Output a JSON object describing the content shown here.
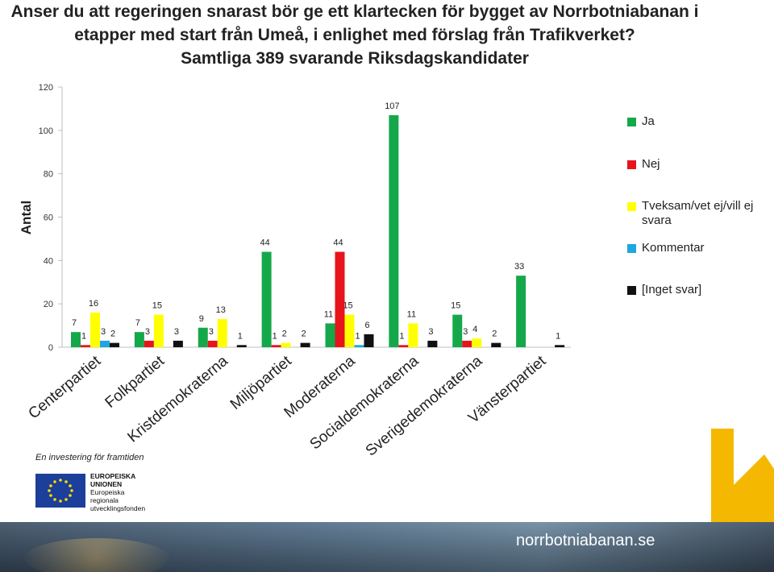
{
  "title_lines": [
    "Anser du att regeringen snarast bör ge ett klartecken för bygget av Norrbotniabanan i",
    "etapper med start från Umeå, i enlighet med förslag från Trafikverket?",
    "Samtliga 389 svarande Riksdagskandidater"
  ],
  "chart_data": {
    "type": "bar",
    "title": "Anser du att regeringen snarast bör ge ett klartecken för bygget av Norrbotniabanan i etapper med start från Umeå, i enlighet med förslag från Trafikverket? Samtliga 389 svarande Riksdagskandidater",
    "ylabel": "Antal",
    "xlabel": "",
    "ylim": [
      0,
      120
    ],
    "yticks": [
      0,
      20,
      40,
      60,
      80,
      100,
      120
    ],
    "grid": false,
    "legend_position": "right",
    "categories": [
      "Centerpartiet",
      "Folkpartiet",
      "Kristdemokraterna",
      "Miljöpartiet",
      "Moderaterna",
      "Socialdemokraterna",
      "Sverigedemokraterna",
      "Vänsterpartiet"
    ],
    "series": [
      {
        "name": "Ja",
        "color": "#15a84a",
        "values": [
          7,
          7,
          9,
          44,
          11,
          107,
          15,
          33
        ]
      },
      {
        "name": "Nej",
        "color": "#e8141b",
        "values": [
          1,
          3,
          3,
          1,
          44,
          1,
          3,
          0
        ]
      },
      {
        "name": "Tveksam/vet ej/vill ej svara",
        "color": "#ffff00",
        "values": [
          16,
          15,
          13,
          2,
          15,
          11,
          4,
          0
        ]
      },
      {
        "name": "Kommentar",
        "color": "#1fa7e1",
        "values": [
          3,
          0,
          0,
          0,
          1,
          0,
          0,
          0
        ]
      },
      {
        "name": "[Inget svar]",
        "color": "#111111",
        "values": [
          2,
          3,
          1,
          2,
          6,
          3,
          2,
          1
        ]
      }
    ],
    "data_labels": [
      [
        7,
        1,
        16,
        3,
        2
      ],
      [
        7,
        3,
        15,
        null,
        3
      ],
      [
        9,
        3,
        13,
        null,
        1
      ],
      [
        44,
        1,
        2,
        null,
        2
      ],
      [
        11,
        44,
        15,
        1,
        6
      ],
      [
        107,
        1,
        11,
        null,
        3
      ],
      [
        15,
        3,
        4,
        null,
        2
      ],
      [
        33,
        null,
        null,
        null,
        1
      ]
    ]
  },
  "legend": {
    "items": [
      "Ja",
      "Nej",
      "Tveksam/vet ej/vill ej svara",
      "Kommentar",
      "[Inget svar]"
    ],
    "colors": [
      "#15a84a",
      "#e8141b",
      "#ffff00",
      "#1fa7e1",
      "#111111"
    ]
  },
  "eu": {
    "tagline": "En investering för framtiden",
    "lines": [
      "EUROPEISKA",
      "UNIONEN",
      "Europeiska",
      "regionala",
      "utvecklingsfonden"
    ]
  },
  "footer": {
    "site": "norrbotniabanan.se",
    "accent": "#f5b800"
  }
}
